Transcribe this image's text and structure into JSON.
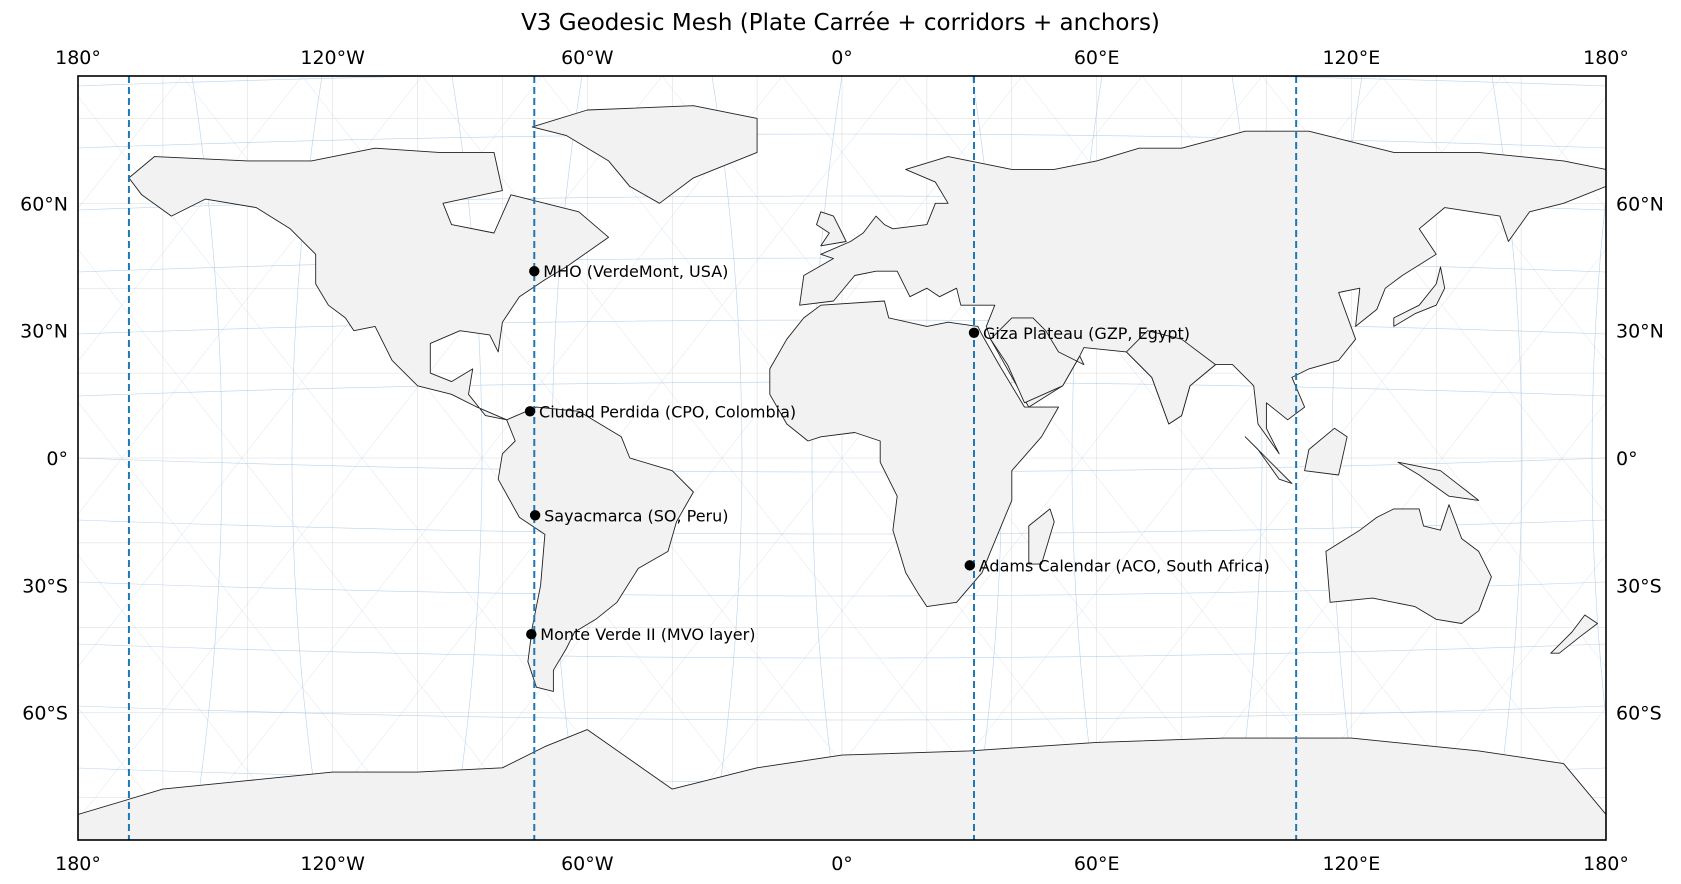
{
  "title": "V3 Geodesic Mesh (Plate Carrée + corridors + anchors)",
  "colors": {
    "land": "#f2f2f2",
    "coast": "#222222",
    "corridor": "#1f77b4",
    "mesh": "#9dbfe0",
    "grid": "#d8d8d8",
    "anchor": "#000000"
  },
  "map": {
    "projection": "Plate Carrée",
    "lon_range": [
      -180,
      180
    ],
    "lat_range": [
      -90,
      90
    ],
    "grid": "on",
    "lon_ticks": [
      {
        "value": -180,
        "label": "180°"
      },
      {
        "value": -120,
        "label": "120°W"
      },
      {
        "value": -60,
        "label": "60°W"
      },
      {
        "value": 0,
        "label": "0°"
      },
      {
        "value": 60,
        "label": "60°E"
      },
      {
        "value": 120,
        "label": "120°E"
      },
      {
        "value": 180,
        "label": "180°"
      }
    ],
    "lat_ticks": [
      {
        "value": 60,
        "label": "60°N"
      },
      {
        "value": 30,
        "label": "30°N"
      },
      {
        "value": 0,
        "label": "0°"
      },
      {
        "value": -30,
        "label": "30°S"
      },
      {
        "value": -60,
        "label": "60°S"
      }
    ],
    "corridors": [
      {
        "lon": -168
      },
      {
        "lon": -72.5
      },
      {
        "lon": 31.1
      },
      {
        "lon": 107
      }
    ],
    "anchors": [
      {
        "label": "MHO (VerdeMont, USA)",
        "lon": -72.5,
        "lat": 44
      },
      {
        "label": "Giza Plateau (GZP, Egypt)",
        "lon": 31.1,
        "lat": 29.5
      },
      {
        "label": "Ciudad Perdida (CPO, Colombia)",
        "lon": -73.5,
        "lat": 11
      },
      {
        "label": "Sayacmarca (SO, Peru)",
        "lon": -72.3,
        "lat": -13.5
      },
      {
        "label": "Adams Calendar (ACO, South Africa)",
        "lon": 30.1,
        "lat": -25.3
      },
      {
        "label": "Monte Verde II (MVO layer)",
        "lon": -73.2,
        "lat": -41.5
      }
    ]
  }
}
